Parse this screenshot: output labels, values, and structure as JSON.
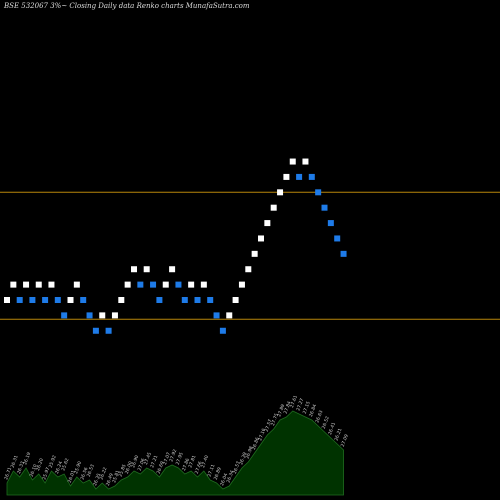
{
  "chart_data": {
    "type": "renko",
    "title": "BSE 532067 3%~   Closing Daily data  Renko  charts MunafaSutra.com",
    "colors": {
      "background": "#000000",
      "up_brick": "#ffffff",
      "down_brick": "#1e7be8",
      "reference_line": "#b8860b",
      "volume_fill": "#003300",
      "volume_stroke": "#1f6b1f",
      "volume_label": "#cccccc"
    },
    "ylim": [
      23.5,
      30.0
    ],
    "reference_lines": [
      27.5,
      25.85
    ],
    "bricks": [
      {
        "dir": "up",
        "close": 26.1
      },
      {
        "dir": "up",
        "close": 26.3
      },
      {
        "dir": "down",
        "close": 26.1
      },
      {
        "dir": "up",
        "close": 26.3
      },
      {
        "dir": "down",
        "close": 26.1
      },
      {
        "dir": "up",
        "close": 26.3
      },
      {
        "dir": "down",
        "close": 26.1
      },
      {
        "dir": "up",
        "close": 26.3
      },
      {
        "dir": "down",
        "close": 26.1
      },
      {
        "dir": "down",
        "close": 25.9
      },
      {
        "dir": "up",
        "close": 26.1
      },
      {
        "dir": "up",
        "close": 26.3
      },
      {
        "dir": "down",
        "close": 26.1
      },
      {
        "dir": "down",
        "close": 25.9
      },
      {
        "dir": "down",
        "close": 25.7
      },
      {
        "dir": "up",
        "close": 25.9
      },
      {
        "dir": "down",
        "close": 25.7
      },
      {
        "dir": "up",
        "close": 25.9
      },
      {
        "dir": "up",
        "close": 26.1
      },
      {
        "dir": "up",
        "close": 26.3
      },
      {
        "dir": "up",
        "close": 26.5
      },
      {
        "dir": "down",
        "close": 26.3
      },
      {
        "dir": "up",
        "close": 26.5
      },
      {
        "dir": "down",
        "close": 26.3
      },
      {
        "dir": "down",
        "close": 26.1
      },
      {
        "dir": "up",
        "close": 26.3
      },
      {
        "dir": "up",
        "close": 26.5
      },
      {
        "dir": "down",
        "close": 26.3
      },
      {
        "dir": "down",
        "close": 26.1
      },
      {
        "dir": "up",
        "close": 26.3
      },
      {
        "dir": "down",
        "close": 26.1
      },
      {
        "dir": "up",
        "close": 26.3
      },
      {
        "dir": "down",
        "close": 26.1
      },
      {
        "dir": "down",
        "close": 25.9
      },
      {
        "dir": "down",
        "close": 25.7
      },
      {
        "dir": "up",
        "close": 25.9
      },
      {
        "dir": "up",
        "close": 26.1
      },
      {
        "dir": "up",
        "close": 26.3
      },
      {
        "dir": "up",
        "close": 26.5
      },
      {
        "dir": "up",
        "close": 26.7
      },
      {
        "dir": "up",
        "close": 26.9
      },
      {
        "dir": "up",
        "close": 27.1
      },
      {
        "dir": "up",
        "close": 27.3
      },
      {
        "dir": "up",
        "close": 27.5
      },
      {
        "dir": "up",
        "close": 27.7
      },
      {
        "dir": "up",
        "close": 27.9
      },
      {
        "dir": "down",
        "close": 27.7
      },
      {
        "dir": "up",
        "close": 27.9
      },
      {
        "dir": "down",
        "close": 27.7
      },
      {
        "dir": "down",
        "close": 27.5
      },
      {
        "dir": "down",
        "close": 27.3
      },
      {
        "dir": "down",
        "close": 27.1
      },
      {
        "dir": "down",
        "close": 26.9
      },
      {
        "dir": "down",
        "close": 26.7
      }
    ],
    "volume": [
      4,
      8,
      6,
      9,
      5,
      7,
      4,
      8,
      6,
      7,
      3,
      6,
      4,
      5,
      2,
      4,
      2,
      3,
      5,
      6,
      8,
      7,
      9,
      8,
      6,
      9,
      10,
      9,
      7,
      8,
      6,
      8,
      5,
      4,
      2,
      3,
      6,
      9,
      11,
      14,
      17,
      20,
      22,
      25,
      26,
      28,
      27,
      26,
      25,
      23,
      21,
      19,
      17,
      15
    ],
    "volume_labels": [
      "26.71",
      "26.31",
      "26.33",
      "26.19",
      "26.10",
      "26.20",
      "25.97",
      "25.92",
      "26.24",
      "25.62",
      "26.01",
      "25.90",
      "26.56",
      "26.53",
      "26.35",
      "26.22",
      "26.49",
      "25.81",
      "25.85",
      "26.00",
      "26.90",
      "27.06",
      "27.45",
      "27.21",
      "26.69",
      "27.07",
      "27.92",
      "27.95",
      "27.86",
      "27.81",
      "27.66",
      "27.40",
      "27.11",
      "26.89",
      "26.04",
      "26.34",
      "26.57",
      "26.39",
      "26.98",
      "26.86",
      "27.16",
      "27.57",
      "27.75",
      "27.89",
      "27.84",
      "27.61",
      "27.27",
      "27.15",
      "26.84",
      "26.63",
      "26.52",
      "26.41",
      "26.21",
      "27.09"
    ]
  }
}
